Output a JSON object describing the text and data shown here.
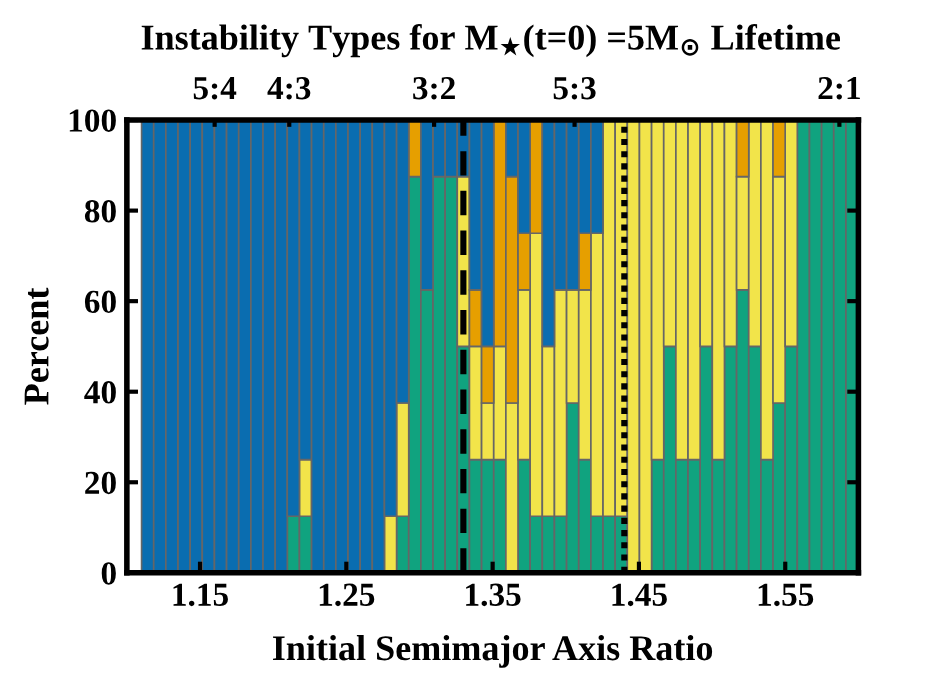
{
  "chart_data": {
    "type": "bar",
    "stacked": true,
    "title": "Instability Types for M$_{★}$(t=0) =5M$_{⊙}$ Lifetime",
    "xlabel": "Initial Semimajor Axis Ratio",
    "ylabel": "Percent",
    "x": [
      1.1142,
      1.1225,
      1.1308,
      1.1391,
      1.1474,
      1.1557,
      1.164,
      1.1723,
      1.1806,
      1.1889,
      1.1972,
      1.2055,
      1.2138,
      1.2221,
      1.2304,
      1.2387,
      1.247,
      1.2553,
      1.2636,
      1.2719,
      1.2802,
      1.2885,
      1.2968,
      1.3051,
      1.3134,
      1.3217,
      1.33,
      1.3383,
      1.3466,
      1.3549,
      1.3632,
      1.3715,
      1.3798,
      1.3881,
      1.3964,
      1.4047,
      1.413,
      1.4213,
      1.4296,
      1.4379,
      1.4462,
      1.4545,
      1.4628,
      1.4711,
      1.4794,
      1.4877,
      1.496,
      1.5043,
      1.5126,
      1.5209,
      1.5292,
      1.5375,
      1.5458,
      1.5541,
      1.5624,
      1.5707,
      1.579,
      1.5873,
      1.5956
    ],
    "series": [
      {
        "color": "#10a37f",
        "values": [
          0,
          0,
          0,
          0,
          0,
          0,
          0,
          0,
          0,
          0,
          0,
          0,
          12.5,
          12.5,
          0,
          0,
          0,
          0,
          0,
          0,
          0,
          12.5,
          87.5,
          62.5,
          87.5,
          87.5,
          50,
          25,
          25,
          25,
          0,
          25,
          12.5,
          12.5,
          12.5,
          37.5,
          25,
          12.5,
          12.5,
          12.5,
          0,
          0,
          25,
          50,
          25,
          25,
          50,
          25,
          50,
          62.5,
          50,
          25,
          37.5,
          50,
          100,
          100,
          100,
          100,
          100
        ]
      },
      {
        "color": "#f2e44a",
        "values": [
          0,
          0,
          0,
          0,
          0,
          0,
          0,
          0,
          0,
          0,
          0,
          0,
          0,
          12.5,
          0,
          0,
          0,
          0,
          0,
          0,
          12.5,
          25,
          0,
          0,
          0,
          0,
          37.5,
          25,
          12.5,
          25,
          37.5,
          37.5,
          62.5,
          37.5,
          50,
          25,
          37.5,
          62.5,
          87.5,
          87.5,
          100,
          100,
          75,
          50,
          75,
          75,
          50,
          75,
          50,
          25,
          50,
          75,
          50,
          50,
          0,
          0,
          0,
          0,
          0
        ]
      },
      {
        "color": "#e69f00",
        "values": [
          0,
          0,
          0,
          0,
          0,
          0,
          0,
          0,
          0,
          0,
          0,
          0,
          0,
          0,
          0,
          0,
          0,
          0,
          0,
          0,
          0,
          0,
          12.5,
          0,
          0,
          0,
          0,
          12.5,
          12.5,
          50,
          50,
          12.5,
          25,
          0,
          0,
          0,
          12.5,
          0,
          0,
          0,
          0,
          0,
          0,
          0,
          0,
          0,
          0,
          0,
          0,
          12.5,
          0,
          0,
          12.5,
          0,
          0,
          0,
          0,
          0,
          0
        ]
      },
      {
        "color": "#0a6db0",
        "values": [
          100,
          100,
          100,
          100,
          100,
          100,
          100,
          100,
          100,
          100,
          100,
          100,
          87.5,
          75,
          100,
          100,
          100,
          100,
          100,
          100,
          87.5,
          62.5,
          0,
          37.5,
          12.5,
          12.5,
          12.5,
          37.5,
          50,
          0,
          12.5,
          25,
          0,
          50,
          37.5,
          37.5,
          25,
          25,
          0,
          0,
          0,
          0,
          0,
          0,
          0,
          0,
          0,
          0,
          0,
          0,
          0,
          0,
          0,
          0,
          0,
          0,
          0,
          0,
          0
        ]
      }
    ],
    "xlim": [
      1.1,
      1.6
    ],
    "xticks": [
      1.15,
      1.25,
      1.35,
      1.45,
      1.55
    ],
    "ylim": [
      0,
      100
    ],
    "yticks": [
      0,
      20,
      40,
      60,
      80,
      100
    ],
    "annotations": [
      {
        "text": "5:4",
        "x": 1.16,
        "y": 100
      },
      {
        "text": "4:3",
        "x": 1.211,
        "y": 100
      },
      {
        "text": "3:2",
        "x": 1.31,
        "y": 100
      },
      {
        "text": "5:3",
        "x": 1.406,
        "y": 100
      },
      {
        "text": "2:1",
        "x": 1.587,
        "y": 100
      }
    ],
    "ref_lines": [
      {
        "axis": "x",
        "value": 1.33,
        "color": "#000000",
        "line_style": "dashed"
      },
      {
        "axis": "x",
        "value": 1.44,
        "color": "#000000",
        "line_style": "dotted"
      }
    ],
    "grid": false,
    "legend": false
  }
}
